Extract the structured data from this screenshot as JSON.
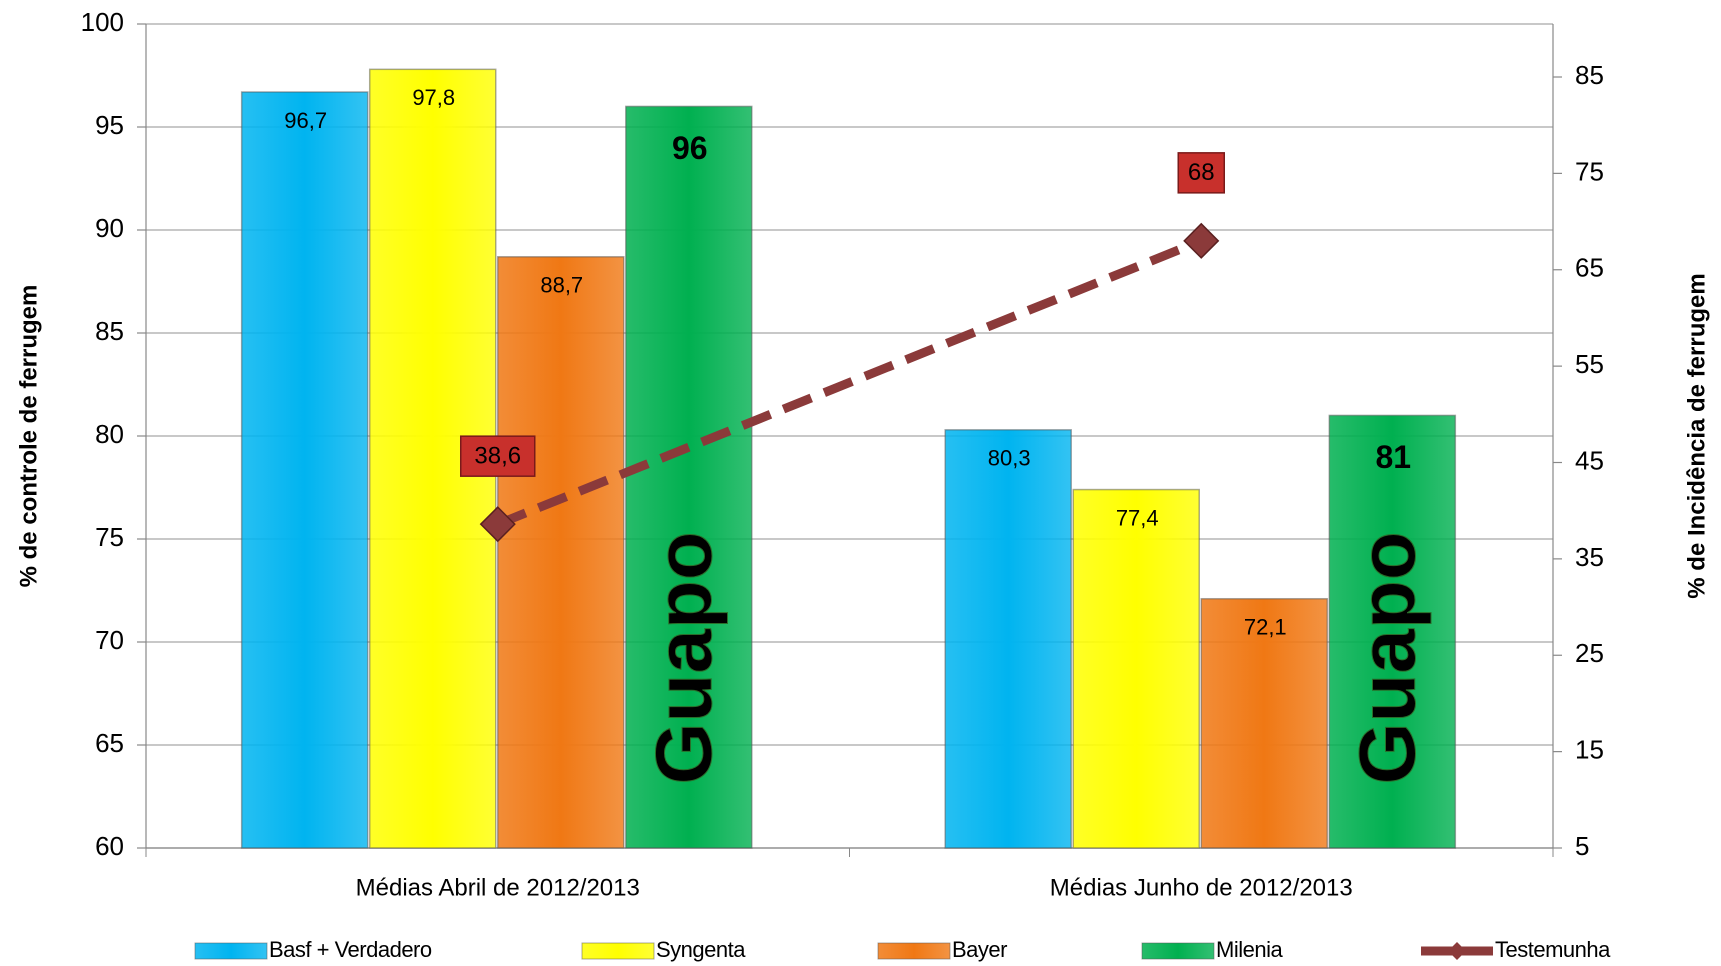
{
  "chart_data": {
    "type": "bar",
    "y_label": "% de controle de ferrugem",
    "y2_label": "% de Incidência de ferrugem",
    "categories": [
      "Médias Abril de 2012/2013",
      "Médias Junho de 2012/2013"
    ],
    "ylim": [
      60,
      100
    ],
    "yticks": [
      60,
      65,
      70,
      75,
      80,
      85,
      90,
      95,
      100
    ],
    "y2lim": [
      5,
      90.5
    ],
    "y2ticks": [
      5,
      15,
      25,
      35,
      45,
      55,
      65,
      75,
      85
    ],
    "grid": true,
    "legend": "bottom",
    "series": [
      {
        "name": "Basf + Verdadero",
        "color": "#00b4f0",
        "values": [
          96.7,
          80.3
        ],
        "value_labels": [
          "96,7",
          "80,3"
        ]
      },
      {
        "name": "Syngenta",
        "color": "#ffff00",
        "values": [
          97.8,
          77.4
        ],
        "value_labels": [
          "97,8",
          "77,4"
        ]
      },
      {
        "name": "Bayer",
        "color": "#f07814",
        "values": [
          88.7,
          72.1
        ],
        "value_labels": [
          "88,7",
          "72,1"
        ]
      },
      {
        "name": "Milenia",
        "color": "#00b050",
        "values": [
          96,
          81
        ],
        "annotations": [
          "Guapo",
          "Guapo"
        ]
      },
      {
        "name": "Testemunha",
        "color": "#8b3a3a",
        "type": "line",
        "axis": "y2",
        "values": [
          38.6,
          68
        ],
        "value_labels": [
          "38,6",
          "68"
        ]
      }
    ]
  }
}
